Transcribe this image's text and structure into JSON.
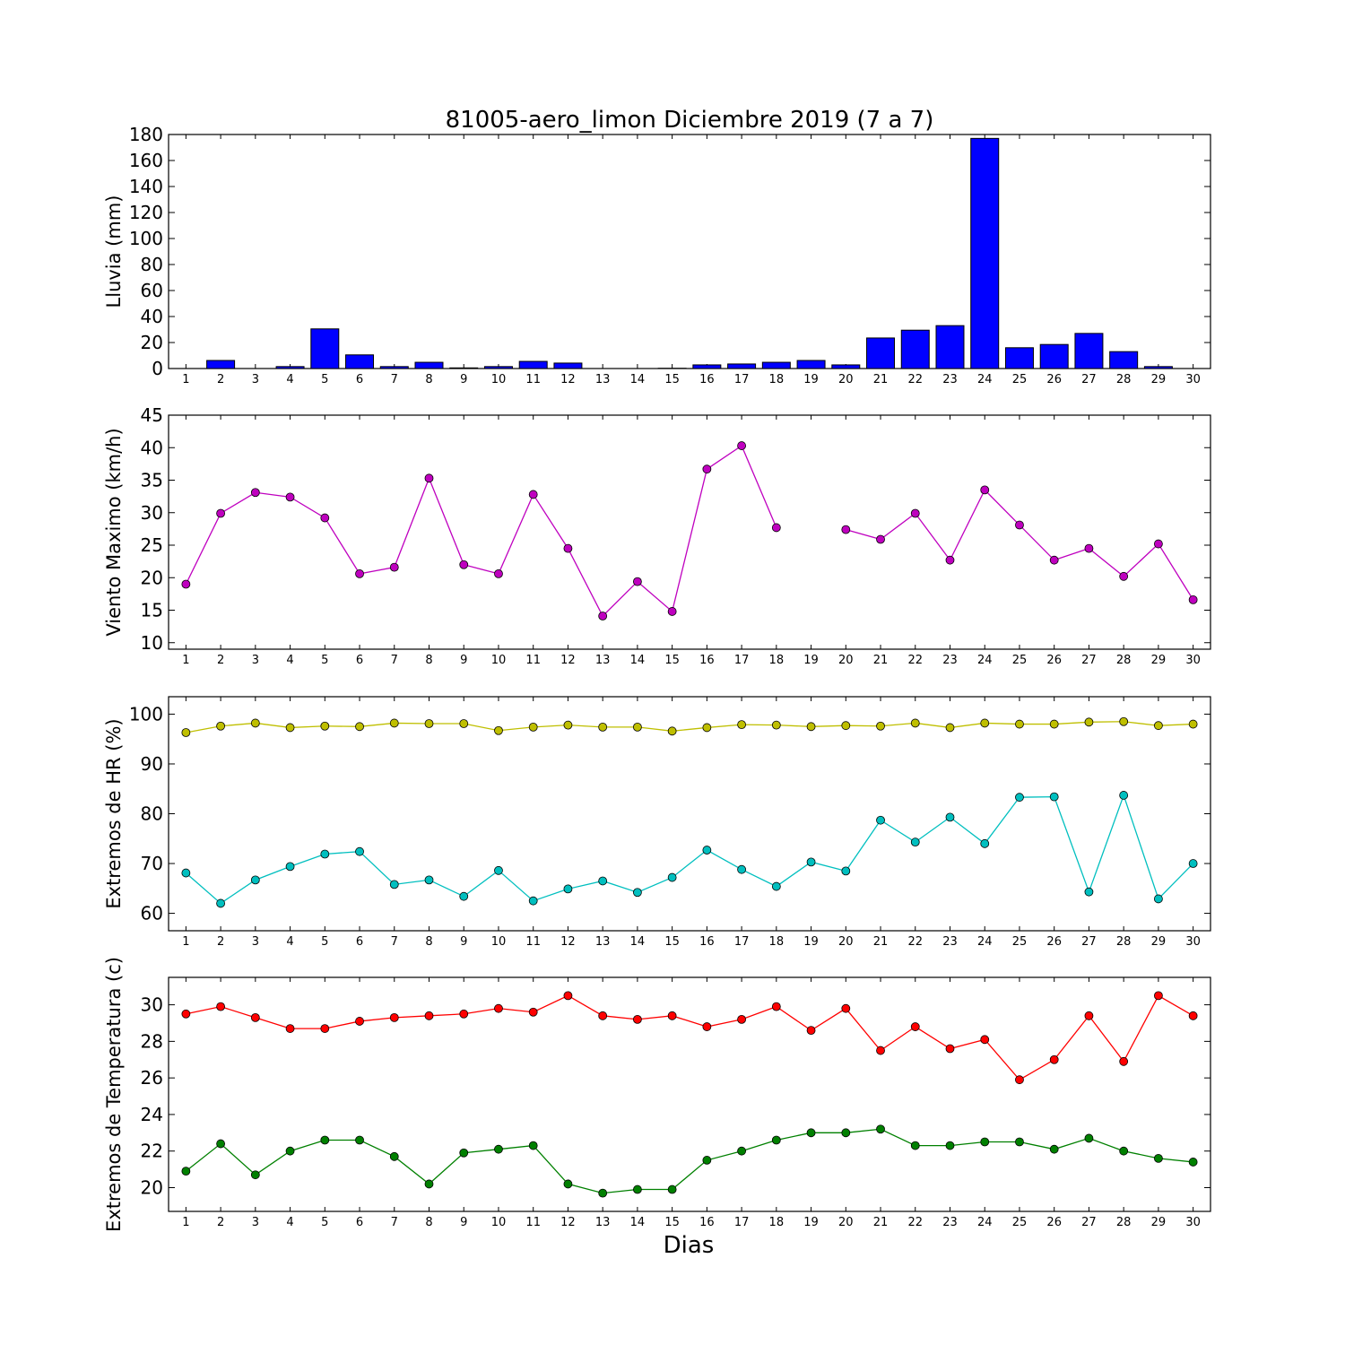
{
  "colors": {
    "bar": "#0000ff",
    "wind": "#bf00bf",
    "hr_max": "#bfbf00",
    "hr_min": "#00bfbf",
    "temp_max": "#ff0000",
    "temp_min": "#008000"
  },
  "figure": {
    "title": "81005-aero_limon Diciembre 2019  (7 a 7)",
    "xlabel": "Dias"
  },
  "chart_data": [
    {
      "type": "bar",
      "ylabel": "Lluvia (mm)",
      "ylim": [
        0,
        180
      ],
      "yticks": [
        0,
        20,
        40,
        60,
        80,
        100,
        120,
        140,
        160,
        180
      ],
      "categories": [
        "1",
        "2",
        "3",
        "4",
        "5",
        "6",
        "7",
        "8",
        "9",
        "10",
        "11",
        "12",
        "13",
        "14",
        "15",
        "16",
        "17",
        "18",
        "19",
        "20",
        "21",
        "22",
        "23",
        "24",
        "25",
        "26",
        "27",
        "28",
        "29",
        "30"
      ],
      "series": [
        {
          "color_key": "bar",
          "values": [
            0,
            6.2,
            0,
            1.5,
            30.5,
            10.5,
            1.5,
            4.8,
            0.5,
            1.5,
            5.5,
            4.2,
            0,
            0,
            0.2,
            2.8,
            3.5,
            4.8,
            6.2,
            2.8,
            23.5,
            29.5,
            33,
            177,
            16,
            18.5,
            27,
            13,
            1.5,
            0
          ]
        }
      ]
    },
    {
      "type": "line",
      "ylabel": "Viento Maximo (km/h)",
      "ylim": [
        9,
        45
      ],
      "yticks": [
        10,
        15,
        20,
        25,
        30,
        35,
        40,
        45
      ],
      "categories": [
        "1",
        "2",
        "3",
        "4",
        "5",
        "6",
        "7",
        "8",
        "9",
        "10",
        "11",
        "12",
        "13",
        "14",
        "15",
        "16",
        "17",
        "18",
        "19",
        "20",
        "21",
        "22",
        "23",
        "24",
        "25",
        "26",
        "27",
        "28",
        "29",
        "30"
      ],
      "series": [
        {
          "color_key": "wind",
          "values": [
            19,
            29.9,
            33.1,
            32.4,
            29.2,
            20.6,
            21.6,
            35.3,
            22,
            20.6,
            32.8,
            24.5,
            14.1,
            19.4,
            14.8,
            36.7,
            40.3,
            27.7,
            null,
            27.4,
            25.9,
            29.9,
            22.7,
            33.5,
            28.1,
            22.7,
            24.5,
            20.2,
            25.2,
            16.6
          ]
        }
      ]
    },
    {
      "type": "line",
      "ylabel": "Extremos de HR (%)",
      "ylim": [
        56.5,
        103.5
      ],
      "yticks": [
        60,
        70,
        80,
        90,
        100
      ],
      "categories": [
        "1",
        "2",
        "3",
        "4",
        "5",
        "6",
        "7",
        "8",
        "9",
        "10",
        "11",
        "12",
        "13",
        "14",
        "15",
        "16",
        "17",
        "18",
        "19",
        "20",
        "21",
        "22",
        "23",
        "24",
        "25",
        "26",
        "27",
        "28",
        "29",
        "30"
      ],
      "series": [
        {
          "color_key": "hr_max",
          "values": [
            96.3,
            97.6,
            98.2,
            97.3,
            97.6,
            97.5,
            98.2,
            98.1,
            98.1,
            96.7,
            97.4,
            97.8,
            97.4,
            97.4,
            96.6,
            97.3,
            97.9,
            97.8,
            97.5,
            97.7,
            97.6,
            98.2,
            97.3,
            98.2,
            98,
            98,
            98.4,
            98.5,
            97.7,
            98
          ],
          "line_marker_color_key": "hr_max"
        },
        {
          "color_key": "hr_min",
          "values": [
            68.1,
            62,
            66.7,
            69.4,
            71.9,
            72.4,
            65.8,
            66.7,
            63.4,
            68.6,
            62.5,
            64.9,
            66.5,
            64.2,
            67.2,
            72.7,
            68.8,
            65.4,
            70.3,
            68.5,
            78.7,
            74.3,
            79.3,
            74,
            83.3,
            83.4,
            64.3,
            83.7,
            62.9,
            70
          ]
        }
      ]
    },
    {
      "type": "line",
      "ylabel": "Extremos de Temperatura (c)",
      "ylim": [
        18.7,
        31.5
      ],
      "yticks": [
        20,
        22,
        24,
        26,
        28,
        30
      ],
      "categories": [
        "1",
        "2",
        "3",
        "4",
        "5",
        "6",
        "7",
        "8",
        "9",
        "10",
        "11",
        "12",
        "13",
        "14",
        "15",
        "16",
        "17",
        "18",
        "19",
        "20",
        "21",
        "22",
        "23",
        "24",
        "25",
        "26",
        "27",
        "28",
        "29",
        "30"
      ],
      "series": [
        {
          "color_key": "temp_max",
          "values": [
            29.5,
            29.9,
            29.3,
            28.7,
            28.7,
            29.1,
            29.3,
            29.4,
            29.5,
            29.8,
            29.6,
            30.5,
            29.4,
            29.2,
            29.4,
            28.8,
            29.2,
            29.9,
            28.6,
            29.8,
            27.5,
            28.8,
            27.6,
            28.1,
            25.9,
            27,
            29.4,
            26.9,
            30.5,
            29.4
          ]
        },
        {
          "color_key": "temp_min",
          "values": [
            20.9,
            22.4,
            20.7,
            22,
            22.6,
            22.6,
            21.7,
            20.2,
            21.9,
            22.1,
            22.3,
            20.2,
            19.7,
            19.9,
            19.9,
            21.5,
            22,
            22.6,
            23,
            23,
            23.2,
            22.3,
            22.3,
            22.5,
            22.5,
            22.1,
            22.7,
            22,
            21.6,
            21.4
          ]
        }
      ]
    }
  ]
}
